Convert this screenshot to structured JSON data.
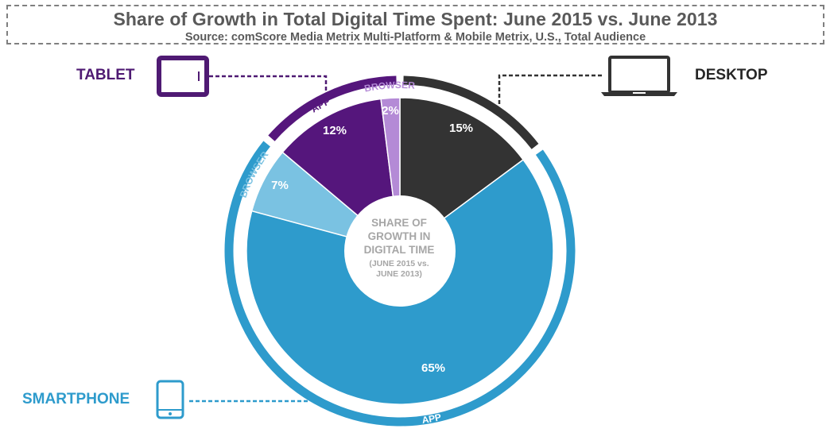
{
  "header": {
    "title": "Share of Growth in Total Digital Time Spent: June 2015 vs. June 2013",
    "subtitle": "Source: comScore Media Metrix Multi-Platform & Mobile Metrix, U.S., Total Audience"
  },
  "devices": {
    "tablet": {
      "label": "TABLET",
      "color": "#4f1a73",
      "icon": "tablet-icon"
    },
    "desktop": {
      "label": "DESKTOP",
      "color": "#333333",
      "icon": "laptop-icon"
    },
    "smartphone": {
      "label": "SMARTPHONE",
      "color": "#2e9bcc",
      "icon": "smartphone-icon"
    }
  },
  "center": {
    "main": "SHARE OF GROWTH IN DIGITAL TIME",
    "sub": "(JUNE 2015 vs. JUNE 2013)"
  },
  "chart_data": {
    "type": "pie",
    "title": "Share of Growth in Total Digital Time Spent: June 2015 vs. June 2013",
    "slices": [
      {
        "device": "DESKTOP",
        "sub_label": "",
        "label": "15%",
        "value": 15,
        "color": "#333333"
      },
      {
        "device": "SMARTPHONE",
        "sub_label": "APP",
        "label": "65%",
        "value": 65,
        "color": "#2e9bcc"
      },
      {
        "device": "SMARTPHONE",
        "sub_label": "BROWSER",
        "label": "7%",
        "value": 7,
        "color": "#7ac2e2"
      },
      {
        "device": "TABLET",
        "sub_label": "APP",
        "label": "12%",
        "value": 12,
        "color": "#55167c"
      },
      {
        "device": "TABLET",
        "sub_label": "BROWSER",
        "label": "2%",
        "value": 2,
        "color": "#b48ad6"
      }
    ],
    "outer_ring": [
      {
        "device": "DESKTOP",
        "value": 15,
        "color": "#333333"
      },
      {
        "device": "SMARTPHONE",
        "value": 72,
        "color": "#2e9bcc"
      },
      {
        "device": "TABLET",
        "value": 14,
        "color": "#55167c"
      }
    ]
  }
}
